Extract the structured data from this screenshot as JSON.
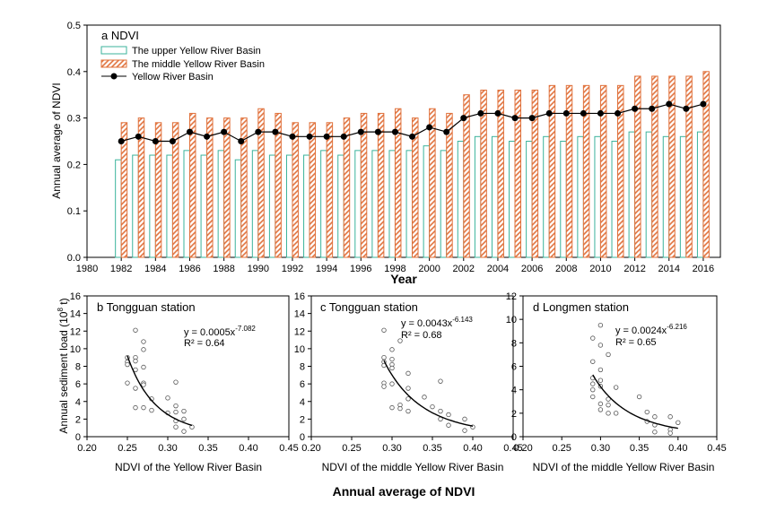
{
  "chart_data": [
    {
      "type": "bar",
      "panel_label": "a NDVI",
      "xlabel": "Year",
      "ylabel": "Annual average of NDVI",
      "xlim": [
        1980,
        2017
      ],
      "ylim": [
        0,
        0.5
      ],
      "x_ticks": [
        "1980",
        "1982",
        "1984",
        "1986",
        "1988",
        "1990",
        "1992",
        "1994",
        "1996",
        "1998",
        "2000",
        "2002",
        "2004",
        "2006",
        "2008",
        "2010",
        "2012",
        "2014",
        "2016"
      ],
      "y_ticks": [
        "0.0",
        "0.1",
        "0.2",
        "0.3",
        "0.4",
        "0.5"
      ],
      "years": [
        1982,
        1983,
        1984,
        1985,
        1986,
        1987,
        1988,
        1989,
        1990,
        1991,
        1992,
        1993,
        1994,
        1995,
        1996,
        1997,
        1998,
        1999,
        2000,
        2001,
        2002,
        2003,
        2004,
        2005,
        2006,
        2007,
        2008,
        2009,
        2010,
        2011,
        2012,
        2013,
        2014,
        2015,
        2016
      ],
      "legend_position": "top-left",
      "series": [
        {
          "name": "The upper Yellow River Basin",
          "style": "bar",
          "values": [
            0.21,
            0.22,
            0.22,
            0.22,
            0.23,
            0.22,
            0.23,
            0.21,
            0.23,
            0.22,
            0.22,
            0.22,
            0.23,
            0.22,
            0.23,
            0.23,
            0.23,
            0.23,
            0.24,
            0.23,
            0.25,
            0.26,
            0.26,
            0.25,
            0.25,
            0.26,
            0.25,
            0.26,
            0.26,
            0.25,
            0.27,
            0.27,
            0.26,
            0.26,
            0.27
          ]
        },
        {
          "name": "The middle Yellow River Basin",
          "style": "hatched-bar",
          "values": [
            0.29,
            0.3,
            0.29,
            0.29,
            0.31,
            0.3,
            0.3,
            0.3,
            0.32,
            0.31,
            0.29,
            0.29,
            0.29,
            0.3,
            0.31,
            0.31,
            0.32,
            0.3,
            0.32,
            0.31,
            0.35,
            0.36,
            0.36,
            0.36,
            0.36,
            0.37,
            0.37,
            0.37,
            0.37,
            0.37,
            0.39,
            0.39,
            0.39,
            0.39,
            0.4
          ]
        },
        {
          "name": "Yellow River Basin",
          "style": "line-marker",
          "values": [
            0.25,
            0.26,
            0.25,
            0.25,
            0.27,
            0.26,
            0.27,
            0.25,
            0.27,
            0.27,
            0.26,
            0.26,
            0.26,
            0.26,
            0.27,
            0.27,
            0.27,
            0.26,
            0.28,
            0.27,
            0.3,
            0.31,
            0.31,
            0.3,
            0.3,
            0.31,
            0.31,
            0.31,
            0.31,
            0.31,
            0.32,
            0.32,
            0.33,
            0.32,
            0.33
          ]
        }
      ]
    },
    {
      "type": "scatter",
      "panel_label": "b Tongguan station",
      "xlabel": "NDVI of the Yellow River Basin",
      "ylabel": "Annual sediment load (10",
      "ylabel_sup": "8",
      "ylabel_end": " t)",
      "xlim": [
        0.2,
        0.45
      ],
      "ylim": [
        0,
        16
      ],
      "x_ticks": [
        "0.20",
        "0.25",
        "0.30",
        "0.35",
        "0.40",
        "0.45"
      ],
      "y_ticks": [
        "0",
        "2",
        "4",
        "6",
        "8",
        "10",
        "12",
        "14",
        "16"
      ],
      "equation": "y = 0.0005x",
      "equation_exp": "-7.082",
      "r2": "R² = 0.64",
      "fit": {
        "a": 0.0005,
        "b": -7.082,
        "x_range": [
          0.25,
          0.33
        ]
      },
      "points": [
        [
          0.25,
          9.0
        ],
        [
          0.25,
          8.5
        ],
        [
          0.25,
          8.2
        ],
        [
          0.25,
          6.1
        ],
        [
          0.26,
          12.1
        ],
        [
          0.26,
          9.0
        ],
        [
          0.26,
          8.6
        ],
        [
          0.26,
          7.6
        ],
        [
          0.26,
          5.5
        ],
        [
          0.26,
          3.3
        ],
        [
          0.27,
          10.8
        ],
        [
          0.27,
          9.9
        ],
        [
          0.27,
          7.9
        ],
        [
          0.27,
          6.1
        ],
        [
          0.27,
          5.9
        ],
        [
          0.27,
          3.3
        ],
        [
          0.28,
          4.3
        ],
        [
          0.28,
          3.0
        ],
        [
          0.3,
          4.4
        ],
        [
          0.3,
          2.7
        ],
        [
          0.31,
          6.2
        ],
        [
          0.31,
          3.5
        ],
        [
          0.31,
          2.8
        ],
        [
          0.31,
          1.8
        ],
        [
          0.31,
          1.1
        ],
        [
          0.32,
          2.9
        ],
        [
          0.32,
          2.0
        ],
        [
          0.32,
          0.6
        ],
        [
          0.33,
          1.1
        ]
      ]
    },
    {
      "type": "scatter",
      "panel_label": "c Tongguan station",
      "xlabel": "NDVI of the middle Yellow River Basin",
      "xlim": [
        0.2,
        0.45
      ],
      "ylim": [
        0,
        16
      ],
      "x_ticks": [
        "0.20",
        "0.25",
        "0.30",
        "0.35",
        "0.40",
        "0.45"
      ],
      "y_ticks": [
        "0",
        "2",
        "4",
        "6",
        "8",
        "10",
        "12",
        "14",
        "16"
      ],
      "equation": "y = 0.0043x",
      "equation_exp": "-6.143",
      "r2": "R² = 0.68",
      "fit": {
        "a": 0.0043,
        "b": -6.143,
        "x_range": [
          0.29,
          0.4
        ]
      },
      "points": [
        [
          0.29,
          12.1
        ],
        [
          0.29,
          9.0
        ],
        [
          0.29,
          8.5
        ],
        [
          0.29,
          8.1
        ],
        [
          0.29,
          6.1
        ],
        [
          0.29,
          5.7
        ],
        [
          0.3,
          9.9
        ],
        [
          0.3,
          8.8
        ],
        [
          0.3,
          8.2
        ],
        [
          0.3,
          7.8
        ],
        [
          0.3,
          6.0
        ],
        [
          0.3,
          3.3
        ],
        [
          0.31,
          10.9
        ],
        [
          0.31,
          3.6
        ],
        [
          0.31,
          3.2
        ],
        [
          0.32,
          7.2
        ],
        [
          0.32,
          5.5
        ],
        [
          0.32,
          4.3
        ],
        [
          0.32,
          2.9
        ],
        [
          0.34,
          4.5
        ],
        [
          0.35,
          3.4
        ],
        [
          0.36,
          6.3
        ],
        [
          0.36,
          2.9
        ],
        [
          0.36,
          2.0
        ],
        [
          0.37,
          2.5
        ],
        [
          0.37,
          1.3
        ],
        [
          0.39,
          2.0
        ],
        [
          0.39,
          0.7
        ],
        [
          0.4,
          1.1
        ]
      ]
    },
    {
      "type": "scatter",
      "panel_label": "d Longmen station",
      "xlabel": "NDVI of the middle Yellow River Basin",
      "xlim": [
        0.2,
        0.45
      ],
      "ylim": [
        0,
        12
      ],
      "x_ticks": [
        "0.20",
        "0.25",
        "0.30",
        "0.35",
        "0.40",
        "0.45"
      ],
      "y_ticks": [
        "0",
        "2",
        "4",
        "6",
        "8",
        "10",
        "12"
      ],
      "equation": "y = 0.0024x",
      "equation_exp": "-6.216",
      "r2": "R² = 0.65",
      "fit": {
        "a": 0.0024,
        "b": -6.216,
        "x_range": [
          0.29,
          0.4
        ]
      },
      "points": [
        [
          0.29,
          8.4
        ],
        [
          0.29,
          6.4
        ],
        [
          0.29,
          5.0
        ],
        [
          0.29,
          4.5
        ],
        [
          0.29,
          4.0
        ],
        [
          0.29,
          3.4
        ],
        [
          0.3,
          9.5
        ],
        [
          0.3,
          7.8
        ],
        [
          0.3,
          5.7
        ],
        [
          0.3,
          4.8
        ],
        [
          0.3,
          4.3
        ],
        [
          0.3,
          2.8
        ],
        [
          0.3,
          2.3
        ],
        [
          0.31,
          7.0
        ],
        [
          0.31,
          3.2
        ],
        [
          0.31,
          2.7
        ],
        [
          0.31,
          2.0
        ],
        [
          0.32,
          4.2
        ],
        [
          0.32,
          2.0
        ],
        [
          0.35,
          3.4
        ],
        [
          0.36,
          2.1
        ],
        [
          0.36,
          1.3
        ],
        [
          0.37,
          1.7
        ],
        [
          0.37,
          1.0
        ],
        [
          0.37,
          0.4
        ],
        [
          0.39,
          1.7
        ],
        [
          0.39,
          0.6
        ],
        [
          0.39,
          0.3
        ],
        [
          0.4,
          1.2
        ]
      ]
    }
  ],
  "figure_xlabel": "Annual average of NDVI",
  "colors": {
    "upper": "#3bb39b",
    "middle": "#e0703a",
    "line": "#000000"
  }
}
